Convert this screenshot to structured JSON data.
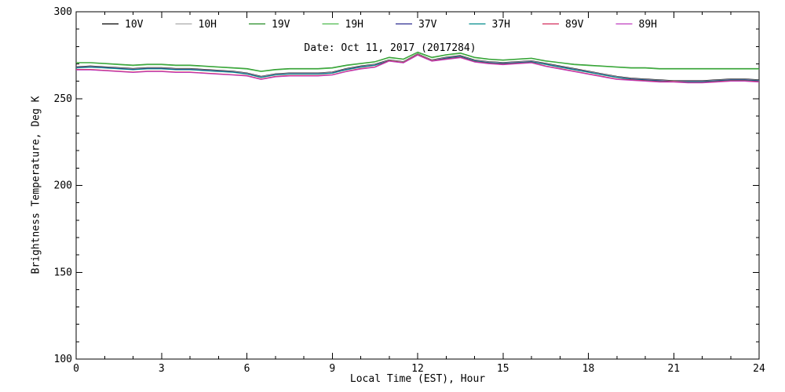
{
  "figure": {
    "background": "#ffffff",
    "frame_color": "#000000",
    "text_color": "#000000"
  },
  "chart_data": {
    "type": "line",
    "title": "Date: Oct 11, 2017 (2017284)",
    "xlabel": "Local Time (EST), Hour",
    "ylabel": "Brightness Temperature, Deg K",
    "xlim": [
      0,
      24
    ],
    "ylim": [
      100,
      300
    ],
    "x_ticks": [
      0,
      3,
      6,
      9,
      12,
      15,
      18,
      21,
      24
    ],
    "y_ticks": [
      100,
      150,
      200,
      250,
      300
    ],
    "x_minor_step": 1,
    "y_minor_step": 10,
    "grid": false,
    "legend_position": "top-inside",
    "x": [
      0,
      0.5,
      1,
      1.5,
      2,
      2.5,
      3,
      3.5,
      4,
      4.5,
      5,
      5.5,
      6,
      6.5,
      7,
      7.5,
      8,
      8.5,
      9,
      9.5,
      10,
      10.5,
      11,
      11.5,
      12,
      12.5,
      13,
      13.5,
      14,
      14.5,
      15,
      15.5,
      16,
      16.5,
      17,
      17.5,
      18,
      18.5,
      19,
      19.5,
      20,
      20.5,
      21,
      21.5,
      22,
      22.5,
      23,
      23.5,
      24
    ],
    "series": [
      {
        "name": "10V",
        "color": "#000000",
        "values": [
          268.3,
          268.8,
          268.3,
          267.8,
          267.3,
          267.8,
          267.8,
          267.3,
          267.3,
          266.8,
          266.3,
          265.8,
          264.8,
          262.8,
          264.3,
          264.8,
          264.8,
          264.8,
          265.3,
          267.3,
          268.8,
          269.8,
          272.3,
          271.3,
          275.8,
          272.3,
          273.8,
          274.8,
          272.3,
          271.3,
          270.8,
          271.3,
          271.8,
          270.3,
          268.8,
          267.3,
          265.8,
          264.3,
          262.8,
          261.8,
          261.3,
          260.8,
          260.3,
          260.3,
          260.3,
          260.8,
          261.3,
          261.3,
          260.8
        ]
      },
      {
        "name": "10H",
        "color": "#A9A9A9",
        "values": [
          268.1,
          268.6,
          268.1,
          267.6,
          267.1,
          267.6,
          267.6,
          267.1,
          267.1,
          266.6,
          266.1,
          265.6,
          264.6,
          262.6,
          264.1,
          264.6,
          264.6,
          264.6,
          265.1,
          267.1,
          268.6,
          269.6,
          272.1,
          271.1,
          275.6,
          272.1,
          273.6,
          274.6,
          272.1,
          271.1,
          270.6,
          271.1,
          271.6,
          270.1,
          268.6,
          267.1,
          265.6,
          264.1,
          262.6,
          261.6,
          261.1,
          260.6,
          260.1,
          260.1,
          260.1,
          260.6,
          261.1,
          261.1,
          260.6
        ]
      },
      {
        "name": "19V",
        "color": "#228B22",
        "values": [
          270.8,
          270.8,
          270.3,
          269.8,
          269.3,
          269.8,
          269.8,
          269.3,
          269.3,
          268.8,
          268.3,
          267.8,
          267.3,
          265.8,
          266.8,
          267.3,
          267.3,
          267.3,
          267.8,
          269.3,
          270.3,
          271.3,
          273.8,
          272.8,
          276.8,
          273.8,
          275.3,
          276.3,
          273.8,
          272.8,
          272.3,
          272.8,
          273.3,
          271.8,
          270.8,
          269.8,
          269.3,
          268.8,
          268.3,
          267.8,
          267.8,
          267.3,
          267.3,
          267.3,
          267.3,
          267.3,
          267.3,
          267.3,
          267.3
        ]
      },
      {
        "name": "19H",
        "color": "#4CBB4C",
        "values": [
          270.5,
          270.5,
          270,
          269.5,
          269,
          269.5,
          269.5,
          269,
          269,
          268.5,
          268,
          267.5,
          267,
          265.5,
          266.5,
          267,
          267,
          267,
          267.5,
          269,
          270,
          271,
          273.5,
          272.5,
          276.5,
          273.5,
          275,
          276,
          273.5,
          272.5,
          272,
          272.5,
          273,
          271.5,
          270.5,
          269.5,
          269,
          268.5,
          268,
          267.5,
          267.5,
          267,
          267,
          267,
          267,
          267,
          267,
          267,
          267
        ]
      },
      {
        "name": "37V",
        "color": "#2B2B8F",
        "values": [
          267.8,
          268.3,
          267.8,
          267.3,
          266.8,
          267.3,
          267.3,
          266.8,
          266.8,
          266.3,
          265.8,
          265.3,
          264.3,
          262.3,
          263.8,
          264.3,
          264.3,
          264.3,
          264.8,
          266.8,
          268.3,
          269.3,
          271.8,
          270.8,
          275.3,
          271.8,
          273.3,
          274.3,
          271.8,
          270.8,
          270.3,
          270.8,
          271.3,
          269.8,
          268.3,
          266.8,
          265.3,
          263.8,
          262.3,
          261.3,
          260.8,
          260.3,
          259.8,
          259.8,
          259.8,
          260.3,
          260.8,
          260.8,
          260.3
        ]
      },
      {
        "name": "37H",
        "color": "#008B8B",
        "values": [
          267.6,
          268.1,
          267.6,
          267.1,
          266.6,
          267.1,
          267.1,
          266.6,
          266.6,
          266.1,
          265.6,
          265.1,
          264.1,
          262.1,
          263.6,
          264.1,
          264.1,
          264.1,
          264.6,
          266.6,
          268.1,
          269.1,
          271.6,
          270.6,
          275.1,
          271.6,
          273.1,
          274.1,
          271.6,
          270.6,
          270.1,
          270.6,
          271.1,
          269.6,
          268.1,
          266.6,
          265.1,
          263.6,
          262.1,
          261.1,
          260.6,
          260.1,
          259.6,
          259.6,
          259.6,
          260.1,
          260.6,
          260.6,
          260.1
        ]
      },
      {
        "name": "89V",
        "color": "#D22B5A",
        "values": [
          266.8,
          266.8,
          266.3,
          265.8,
          265.3,
          265.8,
          265.8,
          265.3,
          265.3,
          264.8,
          264.3,
          263.8,
          263.3,
          261.3,
          262.8,
          263.3,
          263.3,
          263.3,
          263.8,
          265.8,
          267.3,
          268.3,
          271.8,
          270.8,
          275.3,
          271.8,
          272.8,
          273.8,
          271.3,
          270.3,
          269.8,
          270.3,
          270.8,
          268.8,
          267.3,
          265.8,
          264.3,
          262.8,
          261.3,
          260.8,
          260.3,
          259.8,
          259.8,
          259.3,
          259.3,
          259.8,
          260.3,
          260.3,
          259.8
        ]
      },
      {
        "name": "89H",
        "color": "#BE3CBE",
        "values": [
          266.5,
          266.5,
          266,
          265.5,
          265,
          265.5,
          265.5,
          265,
          265,
          264.5,
          264,
          263.5,
          263,
          261,
          262.5,
          263,
          263,
          263,
          263.5,
          265.5,
          267,
          268,
          271.5,
          270.5,
          275,
          271.5,
          272.5,
          273.5,
          271,
          270,
          269.5,
          270,
          270.5,
          268.5,
          267,
          265.5,
          264,
          262.5,
          261,
          260.5,
          260,
          259.5,
          259.5,
          259,
          259,
          259.5,
          260,
          260,
          259.5
        ]
      }
    ]
  }
}
